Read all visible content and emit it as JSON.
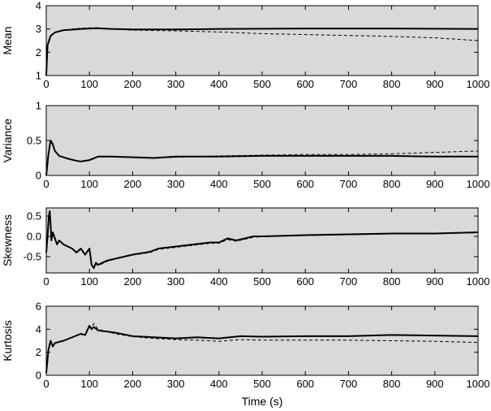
{
  "chart_data": [
    {
      "type": "line",
      "ylabel": "Mean",
      "xlim": [
        0,
        1000
      ],
      "ylim": [
        1,
        4
      ],
      "xticks": [
        "0",
        "100",
        "200",
        "300",
        "400",
        "500",
        "600",
        "700",
        "800",
        "900",
        "1000"
      ],
      "yticks": [
        "1",
        "2",
        "3",
        "4"
      ],
      "background": "#d9d9d9",
      "series": [
        {
          "style": "solid",
          "x": [
            0,
            3,
            10,
            20,
            40,
            60,
            80,
            100,
            120,
            150,
            200,
            300,
            400,
            500,
            600,
            700,
            800,
            900,
            1000
          ],
          "y": [
            1.0,
            2.3,
            2.7,
            2.85,
            2.95,
            2.97,
            3.0,
            3.02,
            3.03,
            3.0,
            2.98,
            2.98,
            3.0,
            3.01,
            3.02,
            3.02,
            3.02,
            3.01,
            3.0
          ]
        },
        {
          "style": "dashed",
          "x": [
            0,
            3,
            10,
            20,
            40,
            60,
            80,
            100,
            120,
            150,
            200,
            300,
            400,
            500,
            600,
            700,
            800,
            900,
            1000
          ],
          "y": [
            1.0,
            2.3,
            2.7,
            2.85,
            2.95,
            3.0,
            3.03,
            3.05,
            3.05,
            3.0,
            2.95,
            2.92,
            2.87,
            2.8,
            2.76,
            2.72,
            2.68,
            2.62,
            2.5
          ]
        }
      ]
    },
    {
      "type": "line",
      "ylabel": "Variance",
      "xlim": [
        0,
        1000
      ],
      "ylim": [
        0,
        1
      ],
      "xticks": [
        "0",
        "100",
        "200",
        "300",
        "400",
        "500",
        "600",
        "700",
        "800",
        "900",
        "1000"
      ],
      "yticks": [
        "0",
        "0.5",
        "1"
      ],
      "background": "#d9d9d9",
      "series": [
        {
          "style": "solid",
          "x": [
            0,
            5,
            10,
            15,
            20,
            30,
            50,
            70,
            80,
            100,
            120,
            150,
            200,
            250,
            300,
            400,
            500,
            600,
            700,
            800,
            900,
            1000
          ],
          "y": [
            0.0,
            0.3,
            0.5,
            0.45,
            0.35,
            0.28,
            0.24,
            0.21,
            0.2,
            0.22,
            0.27,
            0.27,
            0.26,
            0.25,
            0.27,
            0.27,
            0.28,
            0.28,
            0.28,
            0.28,
            0.27,
            0.27
          ]
        },
        {
          "style": "dashed",
          "x": [
            0,
            5,
            10,
            15,
            20,
            30,
            50,
            70,
            80,
            100,
            120,
            150,
            200,
            250,
            300,
            400,
            500,
            600,
            700,
            800,
            900,
            1000
          ],
          "y": [
            0.0,
            0.3,
            0.5,
            0.45,
            0.35,
            0.28,
            0.24,
            0.21,
            0.2,
            0.22,
            0.27,
            0.27,
            0.26,
            0.25,
            0.26,
            0.28,
            0.29,
            0.3,
            0.3,
            0.31,
            0.33,
            0.35
          ]
        }
      ]
    },
    {
      "type": "line",
      "ylabel": "Skewness",
      "xlim": [
        0,
        1000
      ],
      "ylim": [
        -0.9,
        0.7
      ],
      "xticks": [
        "0",
        "100",
        "200",
        "300",
        "400",
        "500",
        "600",
        "700",
        "800",
        "900",
        "1000"
      ],
      "yticks": [
        "0.5",
        "0.0",
        "-0.5"
      ],
      "ytick_values": [
        0.5,
        0.0,
        -0.5
      ],
      "background": "#d9d9d9",
      "series": [
        {
          "style": "solid",
          "x": [
            0,
            3,
            6,
            8,
            10,
            12,
            15,
            20,
            25,
            30,
            40,
            50,
            60,
            70,
            80,
            90,
            100,
            105,
            110,
            115,
            120,
            140,
            160,
            180,
            200,
            240,
            260,
            300,
            340,
            380,
            400,
            420,
            440,
            460,
            480,
            500,
            600,
            700,
            800,
            900,
            1000
          ],
          "y": [
            -0.4,
            0.0,
            0.5,
            0.62,
            0.3,
            -0.1,
            0.1,
            -0.05,
            -0.2,
            -0.1,
            -0.2,
            -0.25,
            -0.3,
            -0.4,
            -0.3,
            -0.45,
            -0.3,
            -0.7,
            -0.78,
            -0.65,
            -0.7,
            -0.6,
            -0.55,
            -0.5,
            -0.45,
            -0.38,
            -0.3,
            -0.25,
            -0.2,
            -0.15,
            -0.15,
            -0.05,
            -0.1,
            -0.05,
            0.0,
            0.0,
            0.03,
            0.05,
            0.07,
            0.07,
            0.1
          ]
        },
        {
          "style": "dashed",
          "x": [
            0,
            3,
            6,
            8,
            10,
            12,
            15,
            20,
            25,
            30,
            40,
            50,
            60,
            70,
            80,
            90,
            100,
            105,
            110,
            115,
            120,
            140,
            160,
            180,
            200,
            240,
            260,
            300,
            340,
            380,
            400,
            420,
            440,
            460,
            480,
            500,
            600,
            700,
            800,
            900,
            1000
          ],
          "y": [
            -0.4,
            0.0,
            0.5,
            0.62,
            0.3,
            -0.1,
            0.1,
            -0.05,
            -0.2,
            -0.1,
            -0.2,
            -0.25,
            -0.3,
            -0.4,
            -0.3,
            -0.45,
            -0.3,
            -0.7,
            -0.8,
            -0.68,
            -0.72,
            -0.62,
            -0.56,
            -0.5,
            -0.46,
            -0.4,
            -0.32,
            -0.27,
            -0.22,
            -0.17,
            -0.17,
            -0.08,
            -0.12,
            -0.07,
            -0.02,
            -0.01,
            0.02,
            0.04,
            0.06,
            0.07,
            0.09
          ]
        }
      ]
    },
    {
      "type": "line",
      "ylabel": "Kurtosis",
      "xlabel": "Time (s)",
      "xlim": [
        0,
        1000
      ],
      "ylim": [
        0,
        6
      ],
      "xticks": [
        "0",
        "100",
        "200",
        "300",
        "400",
        "500",
        "600",
        "700",
        "800",
        "900",
        "1000"
      ],
      "yticks": [
        "0",
        "2",
        "4",
        "6"
      ],
      "background": "#d9d9d9",
      "series": [
        {
          "style": "solid",
          "x": [
            0,
            5,
            10,
            15,
            20,
            40,
            60,
            80,
            90,
            100,
            105,
            110,
            120,
            140,
            160,
            200,
            250,
            300,
            350,
            400,
            450,
            500,
            600,
            700,
            800,
            900,
            1000
          ],
          "y": [
            0.2,
            2.2,
            3.0,
            2.5,
            2.8,
            3.0,
            3.3,
            3.6,
            3.5,
            4.3,
            4.0,
            4.2,
            3.9,
            3.8,
            3.7,
            3.4,
            3.3,
            3.2,
            3.3,
            3.2,
            3.4,
            3.35,
            3.4,
            3.4,
            3.5,
            3.45,
            3.4
          ]
        },
        {
          "style": "dashed",
          "x": [
            0,
            5,
            10,
            15,
            20,
            40,
            60,
            80,
            90,
            100,
            105,
            110,
            120,
            140,
            160,
            200,
            250,
            300,
            350,
            400,
            450,
            500,
            600,
            700,
            800,
            900,
            1000
          ],
          "y": [
            0.2,
            2.2,
            3.0,
            2.5,
            2.8,
            3.0,
            3.3,
            3.6,
            3.5,
            4.3,
            4.1,
            4.5,
            4.0,
            3.8,
            3.6,
            3.35,
            3.2,
            3.1,
            3.05,
            2.95,
            3.1,
            3.05,
            3.05,
            3.05,
            3.0,
            2.95,
            2.85
          ]
        }
      ]
    }
  ]
}
